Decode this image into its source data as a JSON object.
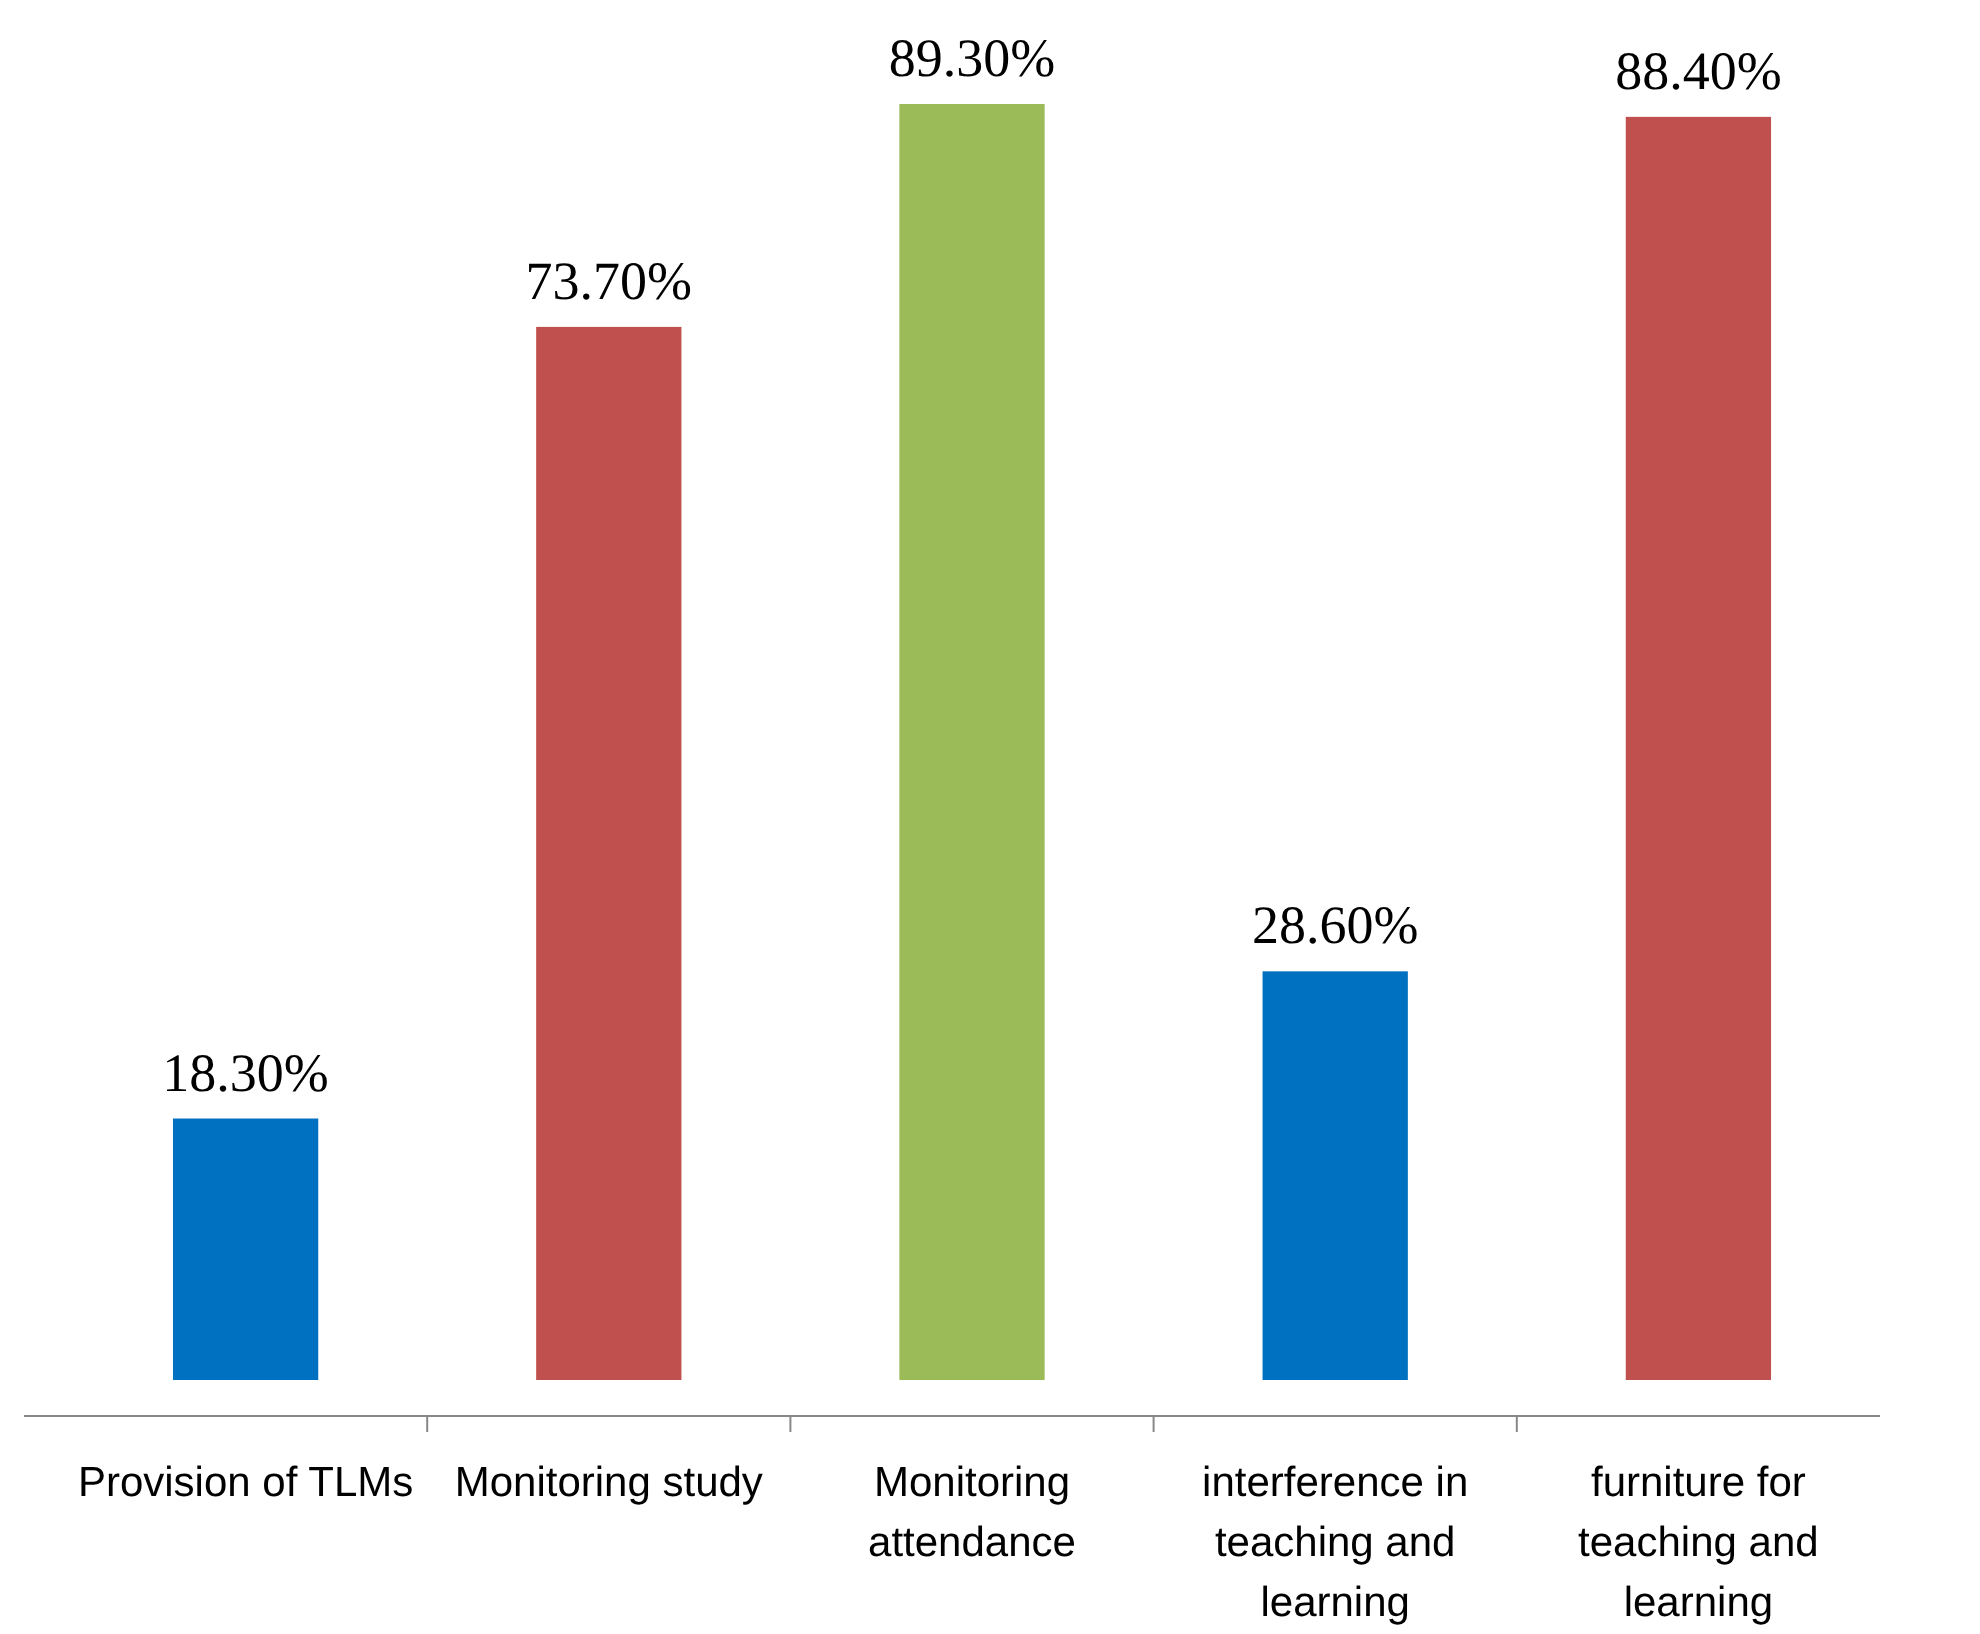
{
  "chart_data": {
    "type": "bar",
    "categories": [
      "Provision of TLMs",
      "Monitoring study",
      "Monitoring attendance",
      "interference in teaching and learning",
      "furniture for teaching and learning"
    ],
    "values": [
      18.3,
      73.7,
      89.3,
      28.6,
      88.4
    ],
    "colors": [
      "#0070c0",
      "#c0504d",
      "#9bbb59",
      "#0070c0",
      "#c0504d"
    ],
    "value_labels": [
      "18.30%",
      "73.70%",
      "89.30%",
      "28.60%",
      "88.40%"
    ]
  }
}
